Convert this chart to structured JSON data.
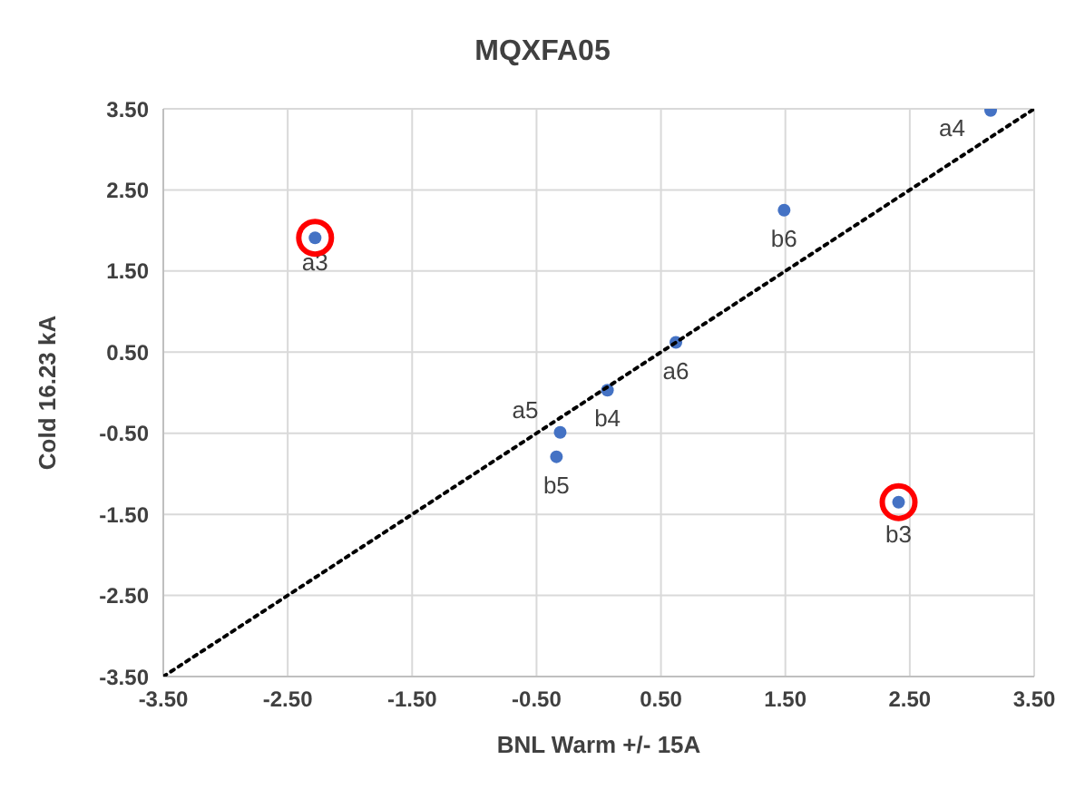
{
  "chart_data": {
    "type": "scatter",
    "title": "MQXFA05",
    "xlabel": "BNL Warm +/- 15A",
    "ylabel": "Cold 16.23 kA",
    "xlim": [
      -3.5,
      3.5
    ],
    "ylim": [
      -3.5,
      3.5
    ],
    "xticks": [
      {
        "value": -3.5,
        "label": "-3.50"
      },
      {
        "value": -2.5,
        "label": "-2.50"
      },
      {
        "value": -1.5,
        "label": "-1.50"
      },
      {
        "value": -0.5,
        "label": "-0.50"
      },
      {
        "value": 0.5,
        "label": "0.50"
      },
      {
        "value": 1.5,
        "label": "1.50"
      },
      {
        "value": 2.5,
        "label": "2.50"
      },
      {
        "value": 3.5,
        "label": "3.50"
      }
    ],
    "yticks": [
      {
        "value": -3.5,
        "label": "-3.50"
      },
      {
        "value": -2.5,
        "label": "-2.50"
      },
      {
        "value": -1.5,
        "label": "-1.50"
      },
      {
        "value": -0.5,
        "label": "-0.50"
      },
      {
        "value": 0.5,
        "label": "0.50"
      },
      {
        "value": 1.5,
        "label": "1.50"
      },
      {
        "value": 2.5,
        "label": "2.50"
      },
      {
        "value": 3.5,
        "label": "3.50"
      }
    ],
    "grid": true,
    "marker": "circle",
    "series": [
      {
        "color": "#4472c4",
        "x": [
          -2.28,
          -0.31,
          -0.34,
          0.07,
          0.62,
          1.49,
          2.41,
          3.15
        ],
        "values": [
          1.91,
          -0.49,
          -0.79,
          0.03,
          0.62,
          2.25,
          -1.35,
          3.48
        ],
        "value_labels": [
          "a3",
          "a5",
          "b5",
          "b4",
          "a6",
          "b6",
          "b3",
          "a4"
        ]
      },
      {
        "color": "#ff0000",
        "x": [
          -2.28,
          2.41
        ],
        "values": [
          1.91,
          -1.35
        ]
      },
      {
        "type": "line",
        "color": "#000000",
        "line_style": "dotted",
        "marker": "none",
        "x": [
          -3.5,
          3.5
        ],
        "values": [
          -3.5,
          3.5
        ]
      }
    ]
  }
}
